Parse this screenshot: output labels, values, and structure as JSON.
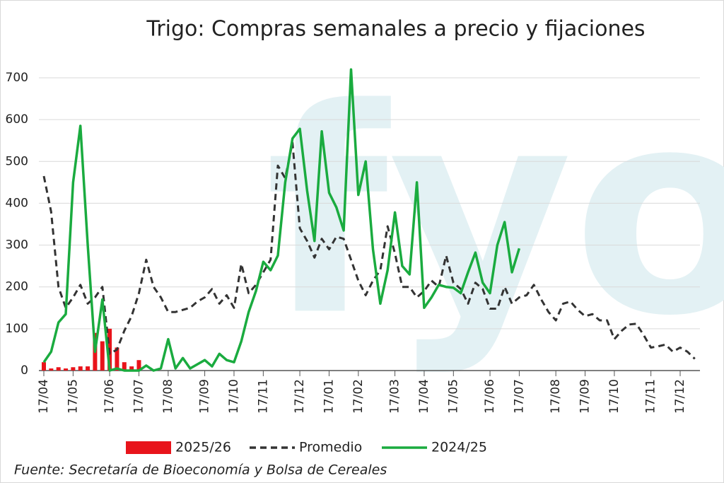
{
  "chart_data": {
    "type": "line",
    "title": "Trigo: Compras semanales a precio y fijaciones",
    "watermark": "fyo",
    "source": "Fuente: Secretaría de Bioeconomía y Bolsa de Cereales",
    "categories": [
      "17/04",
      null,
      null,
      null,
      "17/05",
      null,
      null,
      null,
      null,
      "17/06",
      null,
      null,
      null,
      "17/07",
      null,
      null,
      null,
      "17/08",
      null,
      null,
      null,
      null,
      "17/09",
      null,
      null,
      null,
      "17/10",
      null,
      null,
      null,
      "17/11",
      null,
      null,
      null,
      null,
      "17/12",
      null,
      null,
      null,
      "17/01",
      null,
      null,
      null,
      "17/02",
      null,
      null,
      null,
      null,
      "17/03",
      null,
      null,
      null,
      "17/04",
      null,
      null,
      null,
      "17/05",
      null,
      null,
      null,
      null,
      "17/06",
      null,
      null,
      null,
      "17/07",
      null,
      null,
      null,
      null,
      "17/08",
      null,
      null,
      null,
      "17/09",
      null,
      null,
      null,
      "17/10",
      null,
      null,
      null,
      null,
      "17/11",
      null,
      null,
      null,
      "17/12",
      null,
      null
    ],
    "series": [
      {
        "name": "2025/26",
        "type": "bar",
        "color": "#e8141b",
        "values": [
          20,
          5,
          8,
          5,
          8,
          10,
          10,
          90,
          70,
          100,
          55,
          20,
          10,
          25,
          null,
          null,
          null,
          null,
          null,
          null,
          null,
          null,
          null,
          null,
          null,
          null,
          null,
          null,
          null,
          null,
          null,
          null,
          null,
          null,
          null,
          null,
          null,
          null,
          null,
          null,
          null,
          null,
          null,
          null,
          null,
          null,
          null,
          null,
          null,
          null,
          null,
          null,
          null,
          null,
          null,
          null,
          null,
          null,
          null,
          null,
          null,
          null,
          null,
          null,
          null,
          null,
          null,
          null,
          null,
          null,
          null,
          null,
          null,
          null,
          null,
          null,
          null,
          null,
          null,
          null,
          null,
          null,
          null,
          null,
          null,
          null,
          null,
          null,
          null,
          null
        ]
      },
      {
        "name": "Promedio",
        "type": "line",
        "style": "dashed",
        "color": "#333333",
        "values": [
          465,
          380,
          200,
          150,
          175,
          205,
          160,
          175,
          200,
          40,
          50,
          95,
          130,
          185,
          265,
          200,
          175,
          140,
          140,
          145,
          150,
          165,
          175,
          195,
          160,
          180,
          150,
          255,
          185,
          205,
          235,
          265,
          490,
          460,
          545,
          340,
          310,
          270,
          315,
          290,
          320,
          315,
          265,
          215,
          180,
          215,
          240,
          345,
          280,
          200,
          200,
          175,
          190,
          215,
          200,
          275,
          210,
          195,
          160,
          210,
          195,
          148,
          148,
          200,
          160,
          175,
          180,
          205,
          170,
          140,
          120,
          160,
          165,
          145,
          130,
          135,
          120,
          120,
          75,
          95,
          110,
          112,
          85,
          55,
          58,
          62,
          45,
          55,
          45,
          28
        ]
      },
      {
        "name": "2024/25",
        "type": "line",
        "style": "solid",
        "color": "#1aab3f",
        "values": [
          20,
          45,
          115,
          135,
          450,
          585,
          300,
          45,
          170,
          0,
          5,
          0,
          0,
          0,
          12,
          0,
          5,
          75,
          5,
          30,
          5,
          15,
          25,
          10,
          40,
          25,
          20,
          70,
          140,
          190,
          260,
          240,
          275,
          450,
          555,
          578,
          430,
          310,
          572,
          425,
          390,
          335,
          720,
          420,
          500,
          290,
          160,
          240,
          378,
          250,
          230,
          450,
          150,
          175,
          205,
          200,
          198,
          185,
          235,
          282,
          210,
          185,
          300,
          355,
          235,
          292,
          null,
          null,
          null,
          null,
          null,
          null,
          null,
          null,
          null,
          null,
          null,
          null,
          null,
          null,
          null,
          null,
          null,
          null,
          null,
          null,
          null,
          null,
          null,
          null
        ]
      }
    ],
    "ylim": [
      0,
      700
    ],
    "yticks": [
      0,
      100,
      200,
      300,
      400,
      500,
      600,
      700
    ],
    "grid": true
  }
}
